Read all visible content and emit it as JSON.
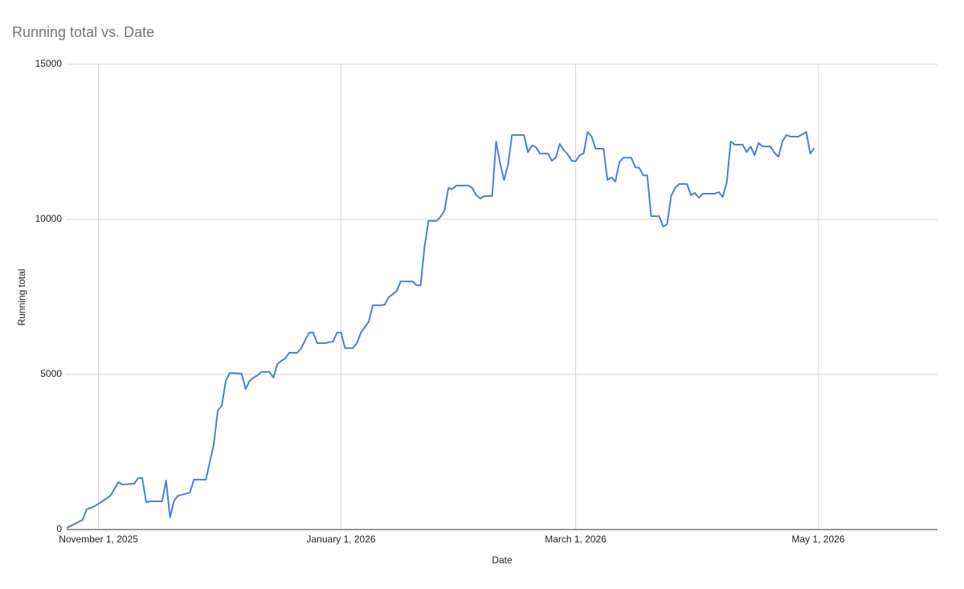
{
  "chart_data": {
    "type": "line",
    "title": "Running total vs. Date",
    "x_label": "Date",
    "y_label": "Running total",
    "x": [
      "2025-10-24",
      "2025-10-28",
      "2025-10-29",
      "2025-10-31",
      "2025-11-01",
      "2025-11-04",
      "2025-11-06",
      "2025-11-07",
      "2025-11-10",
      "2025-11-11",
      "2025-11-12",
      "2025-11-13",
      "2025-11-14",
      "2025-11-17",
      "2025-11-18",
      "2025-11-19",
      "2025-11-20",
      "2025-11-21",
      "2025-11-24",
      "2025-11-25",
      "2025-11-28",
      "2025-11-30",
      "2025-12-01",
      "2025-12-02",
      "2025-12-03",
      "2025-12-04",
      "2025-12-07",
      "2025-12-08",
      "2025-12-09",
      "2025-12-10",
      "2025-12-11",
      "2025-12-12",
      "2025-12-14",
      "2025-12-15",
      "2025-12-16",
      "2025-12-17",
      "2025-12-18",
      "2025-12-19",
      "2025-12-21",
      "2025-12-22",
      "2025-12-23",
      "2025-12-24",
      "2025-12-25",
      "2025-12-26",
      "2025-12-28",
      "2025-12-29",
      "2025-12-30",
      "2025-12-31",
      "2026-01-01",
      "2026-01-02",
      "2026-01-04",
      "2026-01-05",
      "2026-01-06",
      "2026-01-08",
      "2026-01-09",
      "2026-01-11",
      "2026-01-12",
      "2026-01-13",
      "2026-01-14",
      "2026-01-15",
      "2026-01-16",
      "2026-01-19",
      "2026-01-20",
      "2026-01-21",
      "2026-01-22",
      "2026-01-23",
      "2026-01-25",
      "2026-01-26",
      "2026-01-27",
      "2026-01-28",
      "2026-01-29",
      "2026-01-30",
      "2026-02-02",
      "2026-02-03",
      "2026-02-04",
      "2026-02-05",
      "2026-02-06",
      "2026-02-08",
      "2026-02-09",
      "2026-02-10",
      "2026-02-11",
      "2026-02-12",
      "2026-02-13",
      "2026-02-16",
      "2026-02-17",
      "2026-02-18",
      "2026-02-19",
      "2026-02-20",
      "2026-02-22",
      "2026-02-23",
      "2026-02-24",
      "2026-02-25",
      "2026-02-26",
      "2026-02-27",
      "2026-02-28",
      "2026-03-01",
      "2026-03-02",
      "2026-03-03",
      "2026-03-04",
      "2026-03-05",
      "2026-03-06",
      "2026-03-08",
      "2026-03-09",
      "2026-03-10",
      "2026-03-11",
      "2026-03-12",
      "2026-03-13",
      "2026-03-15",
      "2026-03-16",
      "2026-03-17",
      "2026-03-18",
      "2026-03-19",
      "2026-03-20",
      "2026-03-22",
      "2026-03-23",
      "2026-03-24",
      "2026-03-25",
      "2026-03-26",
      "2026-03-27",
      "2026-03-29",
      "2026-03-30",
      "2026-03-31",
      "2026-04-01",
      "2026-04-02",
      "2026-04-05",
      "2026-04-06",
      "2026-04-07",
      "2026-04-08",
      "2026-04-09",
      "2026-04-10",
      "2026-04-12",
      "2026-04-13",
      "2026-04-14",
      "2026-04-15",
      "2026-04-16",
      "2026-04-17",
      "2026-04-19",
      "2026-04-20",
      "2026-04-21",
      "2026-04-22",
      "2026-04-23",
      "2026-04-24",
      "2026-04-26",
      "2026-04-27",
      "2026-04-28",
      "2026-04-29",
      "2026-04-30"
    ],
    "series": [
      {
        "name": "Running total",
        "color": "#4a7fdc",
        "values": [
          50,
          310,
          650,
          750,
          830,
          1090,
          1530,
          1450,
          1480,
          1660,
          1660,
          880,
          910,
          910,
          1580,
          390,
          930,
          1090,
          1190,
          1610,
          1610,
          2750,
          3840,
          3990,
          4790,
          5050,
          5030,
          4530,
          4790,
          4900,
          4970,
          5080,
          5080,
          4900,
          5340,
          5440,
          5520,
          5700,
          5700,
          5850,
          6110,
          6350,
          6350,
          6010,
          6010,
          6040,
          6060,
          6350,
          6350,
          5850,
          5850,
          6010,
          6350,
          6710,
          7230,
          7230,
          7250,
          7490,
          7590,
          7690,
          8000,
          8000,
          7870,
          7870,
          9120,
          9950,
          9950,
          10080,
          10280,
          11010,
          10980,
          11090,
          11090,
          11010,
          10780,
          10670,
          10750,
          10750,
          12510,
          11810,
          11270,
          11760,
          12720,
          12720,
          12170,
          12380,
          12330,
          12120,
          12120,
          11890,
          11990,
          12430,
          12230,
          12100,
          11890,
          11870,
          12070,
          12120,
          12820,
          12670,
          12280,
          12280,
          11270,
          11350,
          11220,
          11840,
          11990,
          11990,
          11680,
          11660,
          11420,
          11420,
          10100,
          10100,
          9770,
          9840,
          10750,
          11010,
          11140,
          11140,
          10780,
          10850,
          10700,
          10830,
          10830,
          10880,
          10720,
          11190,
          12510,
          12410,
          12410,
          12170,
          12350,
          12070,
          12460,
          12350,
          12350,
          12150,
          12020,
          12510,
          12720,
          12670,
          12670,
          12740,
          12820,
          12120,
          12300
        ]
      }
    ],
    "xlim": [
      "2025-10-24",
      "2026-05-31"
    ],
    "xticks": [
      {
        "value": "2025-11-01",
        "label": "November 1, 2025"
      },
      {
        "value": "2026-01-01",
        "label": "January 1, 2026"
      },
      {
        "value": "2026-03-01",
        "label": "March 1, 2026"
      },
      {
        "value": "2026-05-01",
        "label": "May 1, 2026"
      }
    ],
    "ylim": [
      0,
      15000
    ],
    "yticks": [
      0,
      5000,
      10000,
      15000
    ],
    "grid": true
  }
}
